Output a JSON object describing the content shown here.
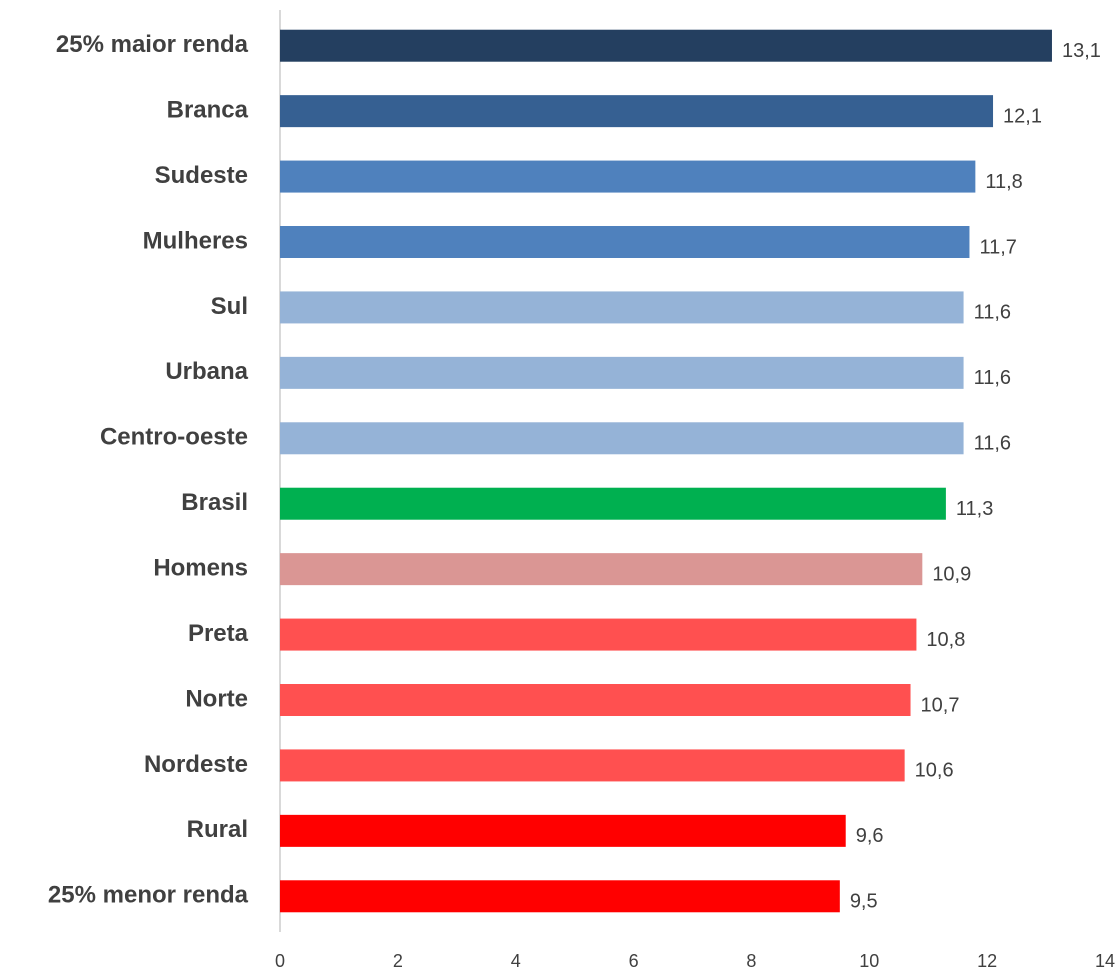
{
  "chart_data": {
    "type": "bar",
    "orientation": "horizontal",
    "categories": [
      "25% maior renda",
      "Branca",
      "Sudeste",
      "Mulheres",
      "Sul",
      "Urbana",
      "Centro-oeste",
      "Brasil",
      "Homens",
      "Preta",
      "Norte",
      "Nordeste",
      "Rural",
      "25% menor renda"
    ],
    "values": [
      13.1,
      12.1,
      11.8,
      11.7,
      11.6,
      11.6,
      11.6,
      11.3,
      10.9,
      10.8,
      10.7,
      10.6,
      9.6,
      9.5
    ],
    "value_labels": [
      "13,1",
      "12,1",
      "11,8",
      "11,7",
      "11,6",
      "11,6",
      "11,6",
      "11,3",
      "10,9",
      "10,8",
      "10,7",
      "10,6",
      "9,6",
      "9,5"
    ],
    "colors": [
      "#243f60",
      "#366092",
      "#4f81bd",
      "#4f81bd",
      "#95b3d7",
      "#95b3d7",
      "#95b3d7",
      "#00b050",
      "#da9694",
      "#ff5050",
      "#ff5050",
      "#ff5050",
      "#ff0000",
      "#ff0000"
    ],
    "xlim": [
      0,
      14
    ],
    "xticks": [
      0,
      2,
      4,
      6,
      8,
      10,
      12,
      14
    ],
    "grid": false
  }
}
